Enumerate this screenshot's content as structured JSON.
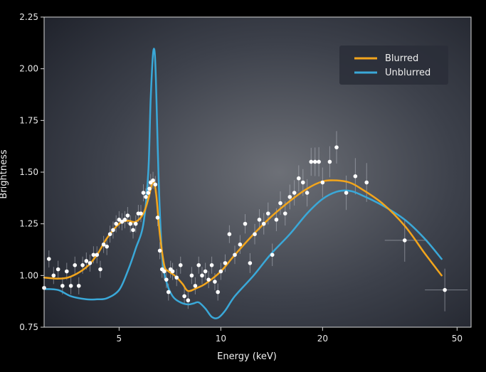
{
  "chart_data": {
    "type": "line",
    "xlabel": "Energy (keV)",
    "ylabel": "Brightness",
    "x_scale": "log",
    "xlim": [
      3.0,
      55
    ],
    "ylim": [
      0.75,
      2.25
    ],
    "x_ticks": [
      5,
      10,
      20,
      50
    ],
    "x_tick_labels": [
      "5",
      "10",
      "20",
      "50"
    ],
    "y_ticks": [
      0.75,
      1.0,
      1.25,
      1.5,
      1.75,
      2.0,
      2.25
    ],
    "y_tick_labels": [
      "0.75",
      "1.00",
      "1.25",
      "1.50",
      "1.75",
      "2.00",
      "2.25"
    ],
    "legend_position": "top-right",
    "series": [
      {
        "name": "Blurred",
        "color": "#f2a51c",
        "x": [
          3.0,
          3.3,
          3.6,
          4.0,
          4.3,
          4.6,
          5.0,
          5.3,
          5.6,
          5.9,
          6.1,
          6.25,
          6.35,
          6.45,
          6.6,
          6.8,
          7.0,
          7.3,
          7.7,
          8.0,
          8.5,
          9.0,
          10.0,
          11.0,
          12.5,
          14.0,
          16.0,
          18.0,
          20.0,
          22.0,
          24.0,
          26.0,
          30.0,
          35.0,
          40.0,
          45.0
        ],
        "y": [
          0.99,
          0.985,
          0.995,
          1.04,
          1.1,
          1.18,
          1.25,
          1.265,
          1.26,
          1.3,
          1.37,
          1.44,
          1.45,
          1.38,
          1.2,
          1.05,
          1.02,
          1.0,
          0.96,
          0.925,
          0.94,
          0.96,
          1.02,
          1.1,
          1.2,
          1.28,
          1.36,
          1.42,
          1.455,
          1.46,
          1.45,
          1.42,
          1.35,
          1.24,
          1.11,
          1.0
        ]
      },
      {
        "name": "Unblurred",
        "color": "#3aa8d8",
        "x": [
          3.0,
          3.3,
          3.6,
          4.0,
          4.3,
          4.6,
          5.0,
          5.3,
          5.6,
          5.9,
          6.1,
          6.2,
          6.3,
          6.38,
          6.45,
          6.55,
          6.7,
          6.9,
          7.2,
          7.6,
          8.0,
          8.3,
          8.6,
          9.0,
          9.4,
          9.8,
          10.3,
          11.0,
          12.5,
          14.0,
          16.0,
          18.0,
          20.0,
          22.0,
          24.0,
          26.0,
          30.0,
          35.0,
          40.0,
          45.0
        ],
        "y": [
          0.935,
          0.93,
          0.9,
          0.885,
          0.885,
          0.89,
          0.93,
          1.02,
          1.13,
          1.25,
          1.5,
          1.85,
          2.07,
          2.07,
          1.85,
          1.45,
          1.1,
          0.97,
          0.9,
          0.87,
          0.86,
          0.865,
          0.87,
          0.84,
          0.8,
          0.795,
          0.83,
          0.9,
          1.0,
          1.1,
          1.2,
          1.3,
          1.37,
          1.405,
          1.41,
          1.39,
          1.34,
          1.27,
          1.18,
          1.08
        ]
      }
    ],
    "data_points": {
      "color": "#ffffff",
      "x": [
        3.0,
        3.1,
        3.2,
        3.3,
        3.4,
        3.5,
        3.6,
        3.7,
        3.8,
        3.9,
        4.0,
        4.1,
        4.2,
        4.3,
        4.4,
        4.5,
        4.6,
        4.7,
        4.8,
        4.9,
        5.0,
        5.1,
        5.2,
        5.3,
        5.4,
        5.5,
        5.6,
        5.7,
        5.8,
        5.9,
        6.0,
        6.1,
        6.15,
        6.2,
        6.3,
        6.4,
        6.5,
        6.6,
        6.7,
        6.8,
        6.9,
        7.0,
        7.1,
        7.2,
        7.4,
        7.6,
        7.8,
        8.0,
        8.2,
        8.4,
        8.6,
        8.8,
        9.0,
        9.2,
        9.4,
        9.6,
        9.8,
        10.0,
        10.3,
        10.6,
        11.0,
        11.4,
        11.8,
        12.2,
        12.6,
        13.0,
        13.4,
        13.8,
        14.2,
        14.6,
        15.0,
        15.5,
        16.0,
        16.5,
        17.0,
        17.5,
        18.0,
        18.5,
        19.0,
        19.5,
        20.0,
        21.0,
        22.0,
        23.5,
        25.0,
        27.0,
        35.0,
        46.0
      ],
      "y": [
        0.94,
        1.08,
        1.0,
        1.03,
        0.95,
        1.02,
        0.95,
        1.05,
        0.95,
        1.05,
        1.07,
        1.06,
        1.1,
        1.1,
        1.03,
        1.15,
        1.14,
        1.2,
        1.22,
        1.25,
        1.27,
        1.26,
        1.27,
        1.29,
        1.25,
        1.22,
        1.25,
        1.3,
        1.3,
        1.4,
        1.38,
        1.4,
        1.42,
        1.45,
        1.46,
        1.44,
        1.28,
        1.12,
        1.03,
        1.02,
        0.98,
        0.92,
        1.03,
        1.02,
        0.99,
        1.05,
        0.9,
        0.88,
        1.0,
        0.95,
        1.05,
        1.0,
        1.02,
        0.98,
        1.05,
        0.97,
        0.92,
        1.02,
        1.06,
        1.2,
        1.1,
        1.15,
        1.25,
        1.06,
        1.2,
        1.27,
        1.25,
        1.3,
        1.1,
        1.27,
        1.35,
        1.3,
        1.38,
        1.4,
        1.47,
        1.45,
        1.4,
        1.55,
        1.55,
        1.55,
        1.45,
        1.55,
        1.62,
        1.4,
        1.48,
        1.45,
        1.17,
        0.93
      ]
    }
  }
}
